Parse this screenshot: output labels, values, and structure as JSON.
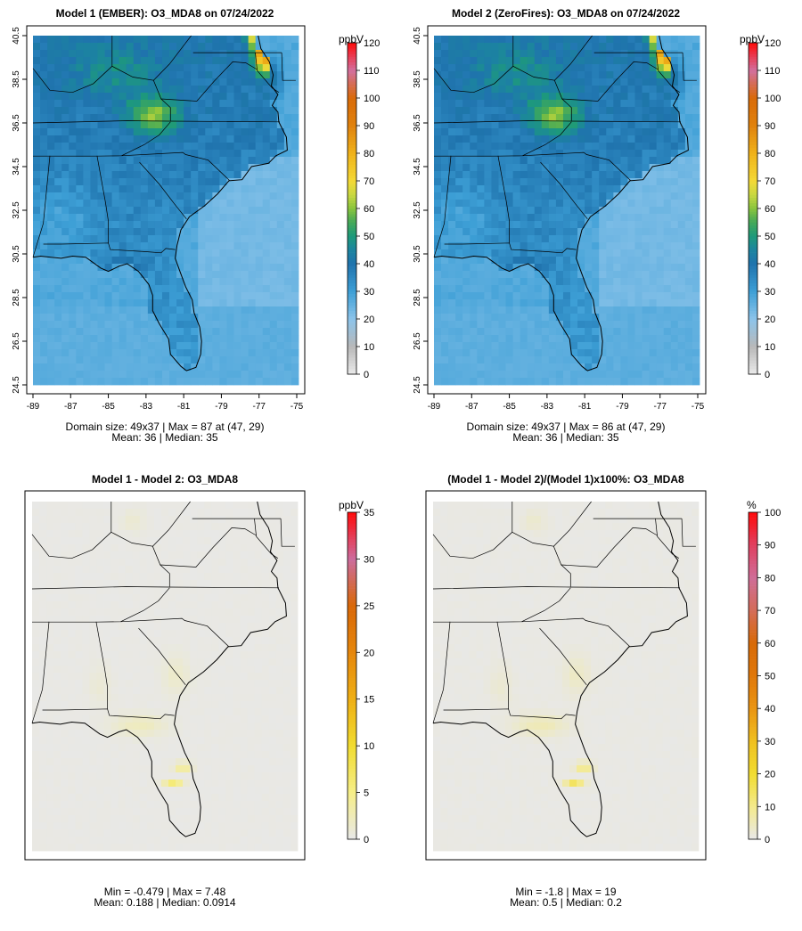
{
  "panels": [
    {
      "title": "Model 1 (EMBER): O3_MDA8 on 07/24/2022",
      "stats_line1": "Domain size: 49x37 | Max = 87 at (47, 29)",
      "stats_line2": "Mean: 36 |  Median: 35",
      "unit": "ppbV",
      "colorbar_ticks": [
        0,
        10,
        20,
        30,
        40,
        50,
        60,
        70,
        80,
        90,
        100,
        110,
        120
      ],
      "colorbar_max": 120,
      "x_ticks": [
        "-89",
        "-87",
        "-85",
        "-83",
        "-81",
        "-79",
        "-77",
        "-75"
      ],
      "y_ticks": [
        "24.5",
        "26.5",
        "28.5",
        "30.5",
        "32.5",
        "34.5",
        "36.5",
        "38.5",
        "40.5"
      ]
    },
    {
      "title": "Model 2 (ZeroFires): O3_MDA8 on 07/24/2022",
      "stats_line1": "Domain size: 49x37 | Max = 86 at (47, 29)",
      "stats_line2": "Mean: 36 |  Median: 35",
      "unit": "ppbV",
      "colorbar_ticks": [
        0,
        10,
        20,
        30,
        40,
        50,
        60,
        70,
        80,
        90,
        100,
        110,
        120
      ],
      "colorbar_max": 120,
      "x_ticks": [
        "-89",
        "-87",
        "-85",
        "-83",
        "-81",
        "-79",
        "-77",
        "-75"
      ],
      "y_ticks": [
        "24.5",
        "26.5",
        "28.5",
        "30.5",
        "32.5",
        "34.5",
        "36.5",
        "38.5",
        "40.5"
      ]
    },
    {
      "title": "Model 1 - Model 2: O3_MDA8",
      "stats_line1": "Min = -0.479 | Max = 7.48",
      "stats_line2": "Mean: 0.188 |  Median: 0.0914",
      "unit": "ppbV",
      "colorbar_ticks": [
        0,
        5,
        10,
        15,
        20,
        25,
        30,
        35
      ],
      "colorbar_max": 35
    },
    {
      "title": "(Model 1 - Model 2)/(Model 1)x100%: O3_MDA8",
      "stats_line1": "Min = -1.8 | Max = 19",
      "stats_line2": "Mean: 0.5 |  Median: 0.2",
      "unit": "%",
      "colorbar_ticks": [
        0,
        10,
        20,
        30,
        40,
        50,
        60,
        70,
        80,
        90,
        100
      ],
      "colorbar_max": 100
    }
  ],
  "chart_data": [
    {
      "type": "heatmap",
      "title": "Model 1 (EMBER): O3_MDA8 on 07/24/2022",
      "domain_size": "49x37",
      "max": 87,
      "max_at": [
        47,
        29
      ],
      "mean": 36,
      "median": 35,
      "xlim": [
        -89,
        -75
      ],
      "ylim": [
        24.5,
        40.5
      ],
      "colorbar": {
        "label": "ppbV",
        "range": [
          0,
          120
        ]
      },
      "colors": {
        "low": "#e6e6e6",
        "mid": "#1f78b4",
        "high": "#ff0000"
      }
    },
    {
      "type": "heatmap",
      "title": "Model 2 (ZeroFires): O3_MDA8 on 07/24/2022",
      "domain_size": "49x37",
      "max": 86,
      "max_at": [
        47,
        29
      ],
      "mean": 36,
      "median": 35,
      "xlim": [
        -89,
        -75
      ],
      "ylim": [
        24.5,
        40.5
      ],
      "colorbar": {
        "label": "ppbV",
        "range": [
          0,
          120
        ]
      }
    },
    {
      "type": "heatmap",
      "title": "Model 1 - Model 2: O3_MDA8",
      "min": -0.479,
      "max": 7.48,
      "mean": 0.188,
      "median": 0.0914,
      "colorbar": {
        "label": "ppbV",
        "range": [
          0,
          35
        ]
      }
    },
    {
      "type": "heatmap",
      "title": "(Model 1 - Model 2)/(Model 1)x100%: O3_MDA8",
      "min": -1.8,
      "max": 19,
      "mean": 0.5,
      "median": 0.2,
      "colorbar": {
        "label": "%",
        "range": [
          0,
          100
        ]
      }
    }
  ]
}
